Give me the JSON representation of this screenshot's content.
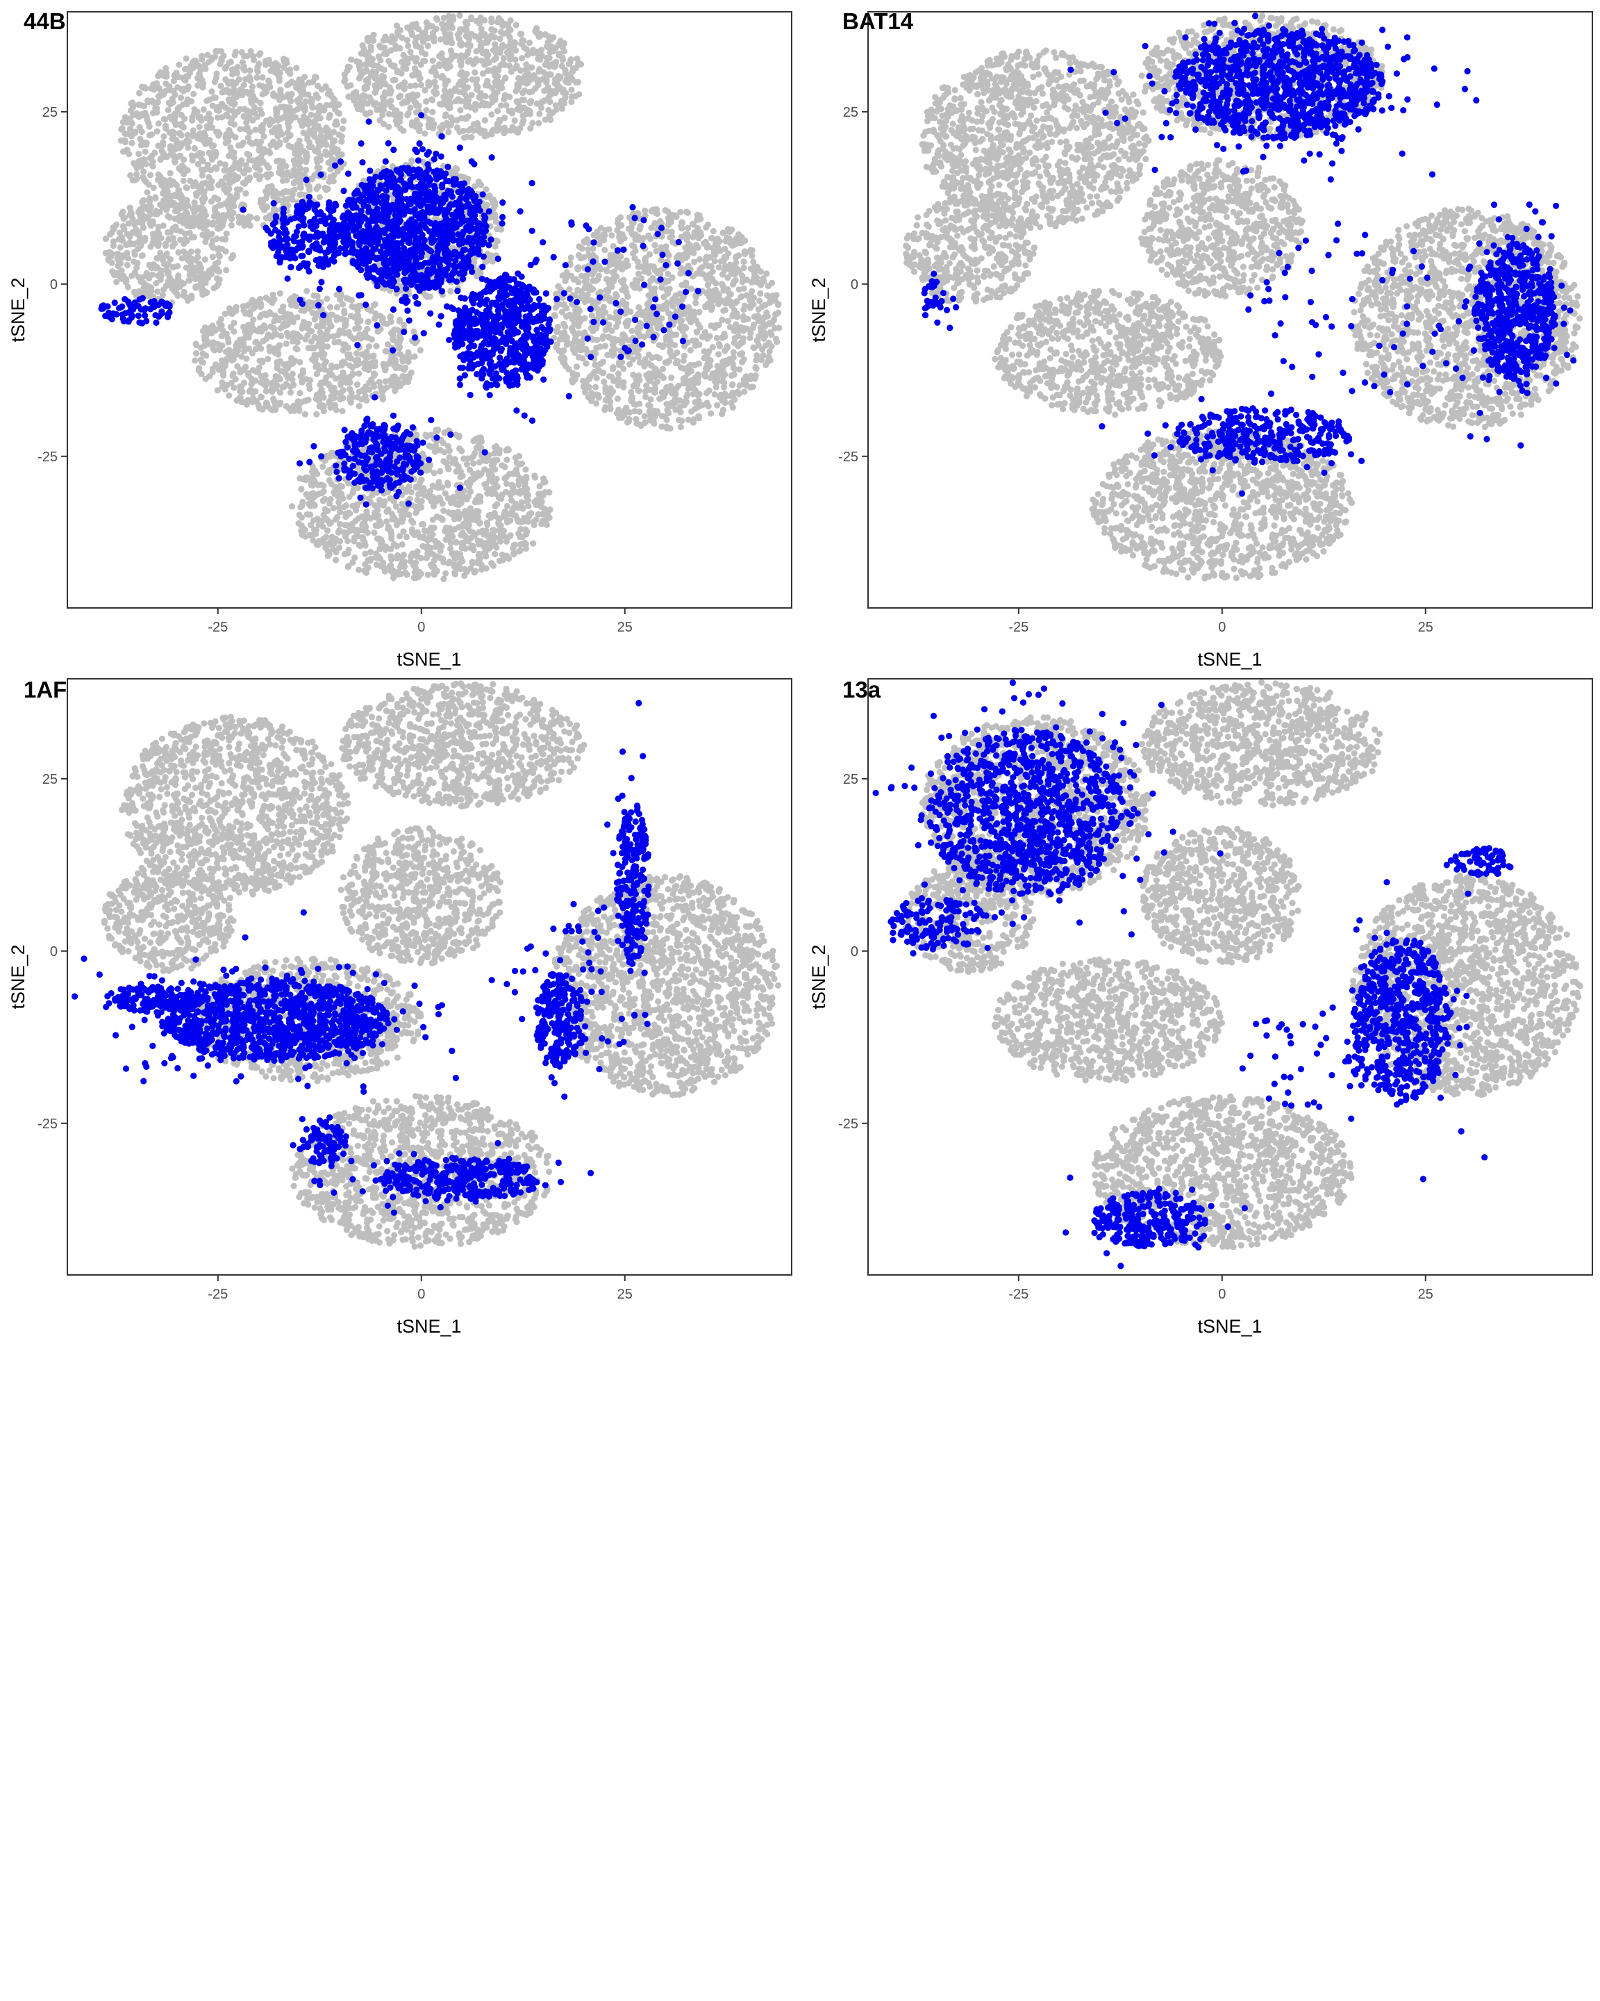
{
  "chart_data": [
    {
      "type": "scatter",
      "tag": "44B",
      "xlabel": "tSNE_1",
      "ylabel": "tSNE_2",
      "xlim": [
        -43.5,
        45.5
      ],
      "ylim": [
        -47,
        39.5
      ],
      "x_ticks": [
        -25,
        0,
        25
      ],
      "y_ticks": [
        -25,
        0,
        25
      ],
      "grid": false,
      "background_color": "#bebebe",
      "highlight_color": "#0000ee",
      "background_clusters": [
        {
          "cx": -23,
          "cy": 21,
          "rx": 14,
          "ry": 13
        },
        {
          "cx": -31,
          "cy": 5,
          "rx": 8,
          "ry": 8
        },
        {
          "cx": 5,
          "cy": 30,
          "rx": 15,
          "ry": 9
        },
        {
          "cx": -14,
          "cy": -10,
          "rx": 14,
          "ry": 9
        },
        {
          "cx": 30,
          "cy": -5,
          "rx": 14,
          "ry": 16
        },
        {
          "cx": 0,
          "cy": -32,
          "rx": 16,
          "ry": 11
        },
        {
          "cx": 0,
          "cy": 8,
          "rx": 10,
          "ry": 10
        }
      ],
      "highlight_clusters": [
        {
          "cx": -1,
          "cy": 8,
          "rx": 9,
          "ry": 9,
          "n": 2400
        },
        {
          "cx": -14,
          "cy": 7,
          "rx": 5,
          "ry": 5,
          "n": 500
        },
        {
          "cx": 10,
          "cy": -7,
          "rx": 6,
          "ry": 8,
          "n": 1300
        },
        {
          "cx": -5,
          "cy": -25,
          "rx": 5,
          "ry": 5,
          "n": 600
        },
        {
          "cx": -35,
          "cy": -4,
          "rx": 5,
          "ry": 2,
          "n": 150
        },
        {
          "cx": 25,
          "cy": 0,
          "rx": 10,
          "ry": 12,
          "n": 120,
          "sparse": true
        }
      ]
    },
    {
      "type": "scatter",
      "tag": "BAT14",
      "xlabel": "tSNE_1",
      "ylabel": "tSNE_2",
      "xlim": [
        -43.5,
        45.5
      ],
      "ylim": [
        -47,
        39.5
      ],
      "x_ticks": [
        -25,
        0,
        25
      ],
      "y_ticks": [
        -25,
        0,
        25
      ],
      "grid": false,
      "background_color": "#bebebe",
      "highlight_color": "#0000ee",
      "background_clusters": [
        {
          "cx": -23,
          "cy": 21,
          "rx": 14,
          "ry": 13
        },
        {
          "cx": -31,
          "cy": 5,
          "rx": 8,
          "ry": 8
        },
        {
          "cx": 5,
          "cy": 30,
          "rx": 15,
          "ry": 9
        },
        {
          "cx": -14,
          "cy": -10,
          "rx": 14,
          "ry": 9
        },
        {
          "cx": 30,
          "cy": -5,
          "rx": 14,
          "ry": 16
        },
        {
          "cx": 0,
          "cy": -32,
          "rx": 16,
          "ry": 11
        },
        {
          "cx": 0,
          "cy": 8,
          "rx": 10,
          "ry": 10
        }
      ],
      "highlight_clusters": [
        {
          "cx": 7,
          "cy": 29,
          "rx": 13,
          "ry": 8,
          "n": 2400
        },
        {
          "cx": 36,
          "cy": -4,
          "rx": 5,
          "ry": 10,
          "n": 1300
        },
        {
          "cx": 5,
          "cy": -22,
          "rx": 11,
          "ry": 4,
          "n": 700
        },
        {
          "cx": -35,
          "cy": -2,
          "rx": 2,
          "ry": 3,
          "n": 60
        },
        {
          "cx": 15,
          "cy": -5,
          "rx": 12,
          "ry": 14,
          "n": 120,
          "sparse": true
        }
      ]
    },
    {
      "type": "scatter",
      "tag": "1AF",
      "xlabel": "tSNE_1",
      "ylabel": "tSNE_2",
      "xlim": [
        -43.5,
        45.5
      ],
      "ylim": [
        -47,
        39.5
      ],
      "x_ticks": [
        -25,
        0,
        25
      ],
      "y_ticks": [
        -25,
        0,
        25
      ],
      "grid": false,
      "background_color": "#bebebe",
      "highlight_color": "#0000ee",
      "background_clusters": [
        {
          "cx": -23,
          "cy": 21,
          "rx": 14,
          "ry": 13
        },
        {
          "cx": -31,
          "cy": 5,
          "rx": 8,
          "ry": 8
        },
        {
          "cx": 5,
          "cy": 30,
          "rx": 15,
          "ry": 9
        },
        {
          "cx": -14,
          "cy": -10,
          "rx": 14,
          "ry": 9
        },
        {
          "cx": 30,
          "cy": -5,
          "rx": 14,
          "ry": 16
        },
        {
          "cx": 0,
          "cy": -32,
          "rx": 16,
          "ry": 11
        },
        {
          "cx": 0,
          "cy": 8,
          "rx": 10,
          "ry": 10
        }
      ],
      "highlight_clusters": [
        {
          "cx": -18,
          "cy": -10,
          "rx": 14,
          "ry": 6,
          "n": 2400
        },
        {
          "cx": -33,
          "cy": -7,
          "rx": 6,
          "ry": 2,
          "n": 300
        },
        {
          "cx": 26,
          "cy": 10,
          "rx": 2,
          "ry": 12,
          "n": 500
        },
        {
          "cx": 17,
          "cy": -10,
          "rx": 3,
          "ry": 7,
          "n": 500
        },
        {
          "cx": 5,
          "cy": -33,
          "rx": 10,
          "ry": 3,
          "n": 700
        },
        {
          "cx": -12,
          "cy": -28,
          "rx": 3,
          "ry": 3,
          "n": 200
        },
        {
          "cx": 20,
          "cy": -5,
          "rx": 10,
          "ry": 12,
          "n": 100,
          "sparse": true
        }
      ]
    },
    {
      "type": "scatter",
      "tag": "13a",
      "xlabel": "tSNE_1",
      "ylabel": "tSNE_2",
      "xlim": [
        -43.5,
        45.5
      ],
      "ylim": [
        -47,
        39.5
      ],
      "x_ticks": [
        -25,
        0,
        25
      ],
      "y_ticks": [
        -25,
        0,
        25
      ],
      "grid": false,
      "background_color": "#bebebe",
      "highlight_color": "#0000ee",
      "background_clusters": [
        {
          "cx": -23,
          "cy": 21,
          "rx": 14,
          "ry": 13
        },
        {
          "cx": -31,
          "cy": 5,
          "rx": 8,
          "ry": 8
        },
        {
          "cx": 5,
          "cy": 30,
          "rx": 15,
          "ry": 9
        },
        {
          "cx": -14,
          "cy": -10,
          "rx": 14,
          "ry": 9
        },
        {
          "cx": 30,
          "cy": -5,
          "rx": 14,
          "ry": 16
        },
        {
          "cx": 0,
          "cy": -32,
          "rx": 16,
          "ry": 11
        },
        {
          "cx": 0,
          "cy": 8,
          "rx": 10,
          "ry": 10
        }
      ],
      "highlight_clusters": [
        {
          "cx": -24,
          "cy": 20,
          "rx": 12,
          "ry": 12,
          "n": 2400
        },
        {
          "cx": -35,
          "cy": 4,
          "rx": 6,
          "ry": 4,
          "n": 300
        },
        {
          "cx": 22,
          "cy": -10,
          "rx": 6,
          "ry": 12,
          "n": 1300
        },
        {
          "cx": -9,
          "cy": -39,
          "rx": 7,
          "ry": 4,
          "n": 600
        },
        {
          "cx": 32,
          "cy": 13,
          "rx": 4,
          "ry": 2,
          "n": 150
        },
        {
          "cx": 10,
          "cy": -15,
          "rx": 8,
          "ry": 8,
          "n": 80,
          "sparse": true
        }
      ]
    }
  ]
}
